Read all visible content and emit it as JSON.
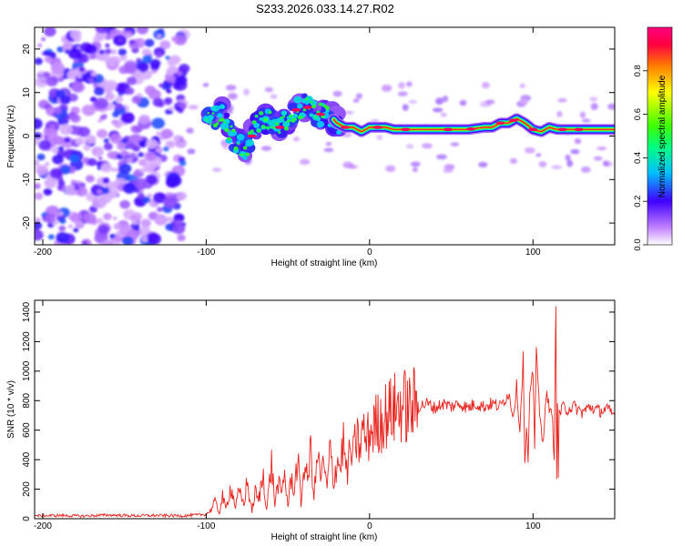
{
  "figure_title": "S233.2026.033.14.27.R02",
  "chart_data": [
    {
      "type": "heatmap",
      "title": "S233.2026.033.14.27.R02",
      "xlabel": "Height of straight line (km)",
      "ylabel": "Frequency (Hz)",
      "xlim": [
        -205,
        150
      ],
      "ylim": [
        -25,
        25
      ],
      "x_ticks": [
        -200,
        -100,
        0,
        100
      ],
      "y_ticks": [
        -20,
        -10,
        0,
        10,
        20
      ],
      "x_tick_labels": [
        "-200",
        "-100",
        "0",
        "100"
      ],
      "y_tick_labels": [
        "-20",
        "-10",
        "0",
        "10",
        "20"
      ],
      "colorbar": {
        "label": "Normalized spectral amplitude",
        "range": [
          0,
          1
        ],
        "ticks": [
          "0.0",
          "0.2",
          "0.4",
          "0.6",
          "0.8"
        ],
        "colors": [
          "#ffffff",
          "#c080ff",
          "#4000ff",
          "#00c0ff",
          "#00ff80",
          "#40ff00",
          "#ffff00",
          "#ff8000",
          "#ff0040",
          "#ff0080"
        ]
      },
      "ridge": {
        "x": [
          -100,
          -95,
          -90,
          -85,
          -80,
          -75,
          -70,
          -65,
          -60,
          -55,
          -50,
          -45,
          -40,
          -35,
          -30,
          -25,
          -20,
          -15,
          -10,
          -5,
          0,
          5,
          10,
          15,
          20,
          25,
          30,
          40,
          50,
          60,
          70,
          75,
          80,
          85,
          90,
          95,
          100,
          105,
          110,
          115,
          120,
          130,
          140,
          150
        ],
        "y": [
          3,
          4,
          5,
          0,
          -2,
          -3,
          2,
          4,
          3,
          2,
          4,
          6,
          7,
          6,
          5,
          5,
          3,
          2,
          2,
          1,
          2,
          2,
          2,
          1.5,
          1.5,
          1.5,
          1.5,
          1.5,
          1.5,
          1.5,
          2,
          2,
          3,
          3,
          4,
          3,
          1.5,
          1,
          2,
          1.5,
          1.5,
          1.5,
          1.5,
          1.5
        ]
      }
    },
    {
      "type": "line",
      "title": "",
      "xlabel": "Height of straight line (km)",
      "ylabel": "SNR (10 * v/v)",
      "xlim": [
        -205,
        150
      ],
      "ylim": [
        0,
        1480
      ],
      "x_ticks": [
        -200,
        -100,
        0,
        100
      ],
      "y_ticks": [
        0,
        200,
        400,
        600,
        800,
        1000,
        1200,
        1400
      ],
      "x_tick_labels": [
        "-200",
        "-100",
        "0",
        "100"
      ],
      "y_tick_labels": [
        "0",
        "200",
        "400",
        "600",
        "800",
        "1000",
        "1200",
        "1400"
      ],
      "series": [
        {
          "name": "SNR",
          "color": "#e8231d",
          "x": [
            -205,
            -190,
            -175,
            -160,
            -145,
            -130,
            -115,
            -105,
            -100,
            -97,
            -95,
            -92,
            -90,
            -88,
            -85,
            -82,
            -80,
            -77,
            -75,
            -72,
            -70,
            -68,
            -65,
            -63,
            -60,
            -58,
            -56,
            -54,
            -52,
            -50,
            -48,
            -46,
            -44,
            -42,
            -40,
            -38,
            -36,
            -34,
            -32,
            -30,
            -28,
            -26,
            -24,
            -22,
            -20,
            -18,
            -16,
            -14,
            -12,
            -10,
            -8,
            -6,
            -4,
            -2,
            0,
            3,
            6,
            9,
            12,
            15,
            18,
            21,
            24,
            27,
            30,
            35,
            40,
            45,
            50,
            55,
            60,
            65,
            70,
            75,
            80,
            85,
            88,
            90,
            92,
            94,
            95,
            96,
            97,
            98,
            100,
            101,
            102,
            104,
            106,
            108,
            110,
            112,
            113,
            114,
            114.5,
            115,
            115.5,
            116,
            117,
            118,
            120,
            125,
            130,
            135,
            140,
            145,
            150
          ],
          "y": [
            20,
            22,
            18,
            25,
            20,
            22,
            20,
            25,
            30,
            60,
            120,
            40,
            150,
            60,
            220,
            80,
            180,
            100,
            250,
            50,
            180,
            120,
            300,
            60,
            380,
            100,
            250,
            150,
            320,
            80,
            280,
            200,
            420,
            100,
            380,
            250,
            470,
            150,
            420,
            300,
            350,
            200,
            480,
            250,
            400,
            350,
            520,
            300,
            450,
            420,
            550,
            480,
            600,
            520,
            580,
            630,
            660,
            690,
            720,
            740,
            760,
            770,
            740,
            770,
            760,
            780,
            750,
            780,
            760,
            780,
            750,
            780,
            760,
            780,
            760,
            850,
            700,
            900,
            600,
            1100,
            350,
            600,
            400,
            800,
            1000,
            500,
            1180,
            700,
            500,
            850,
            760,
            650,
            400,
            1480,
            300,
            800,
            250,
            760,
            700,
            760,
            740,
            760,
            720,
            760,
            730,
            740,
            700
          ]
        }
      ]
    }
  ]
}
